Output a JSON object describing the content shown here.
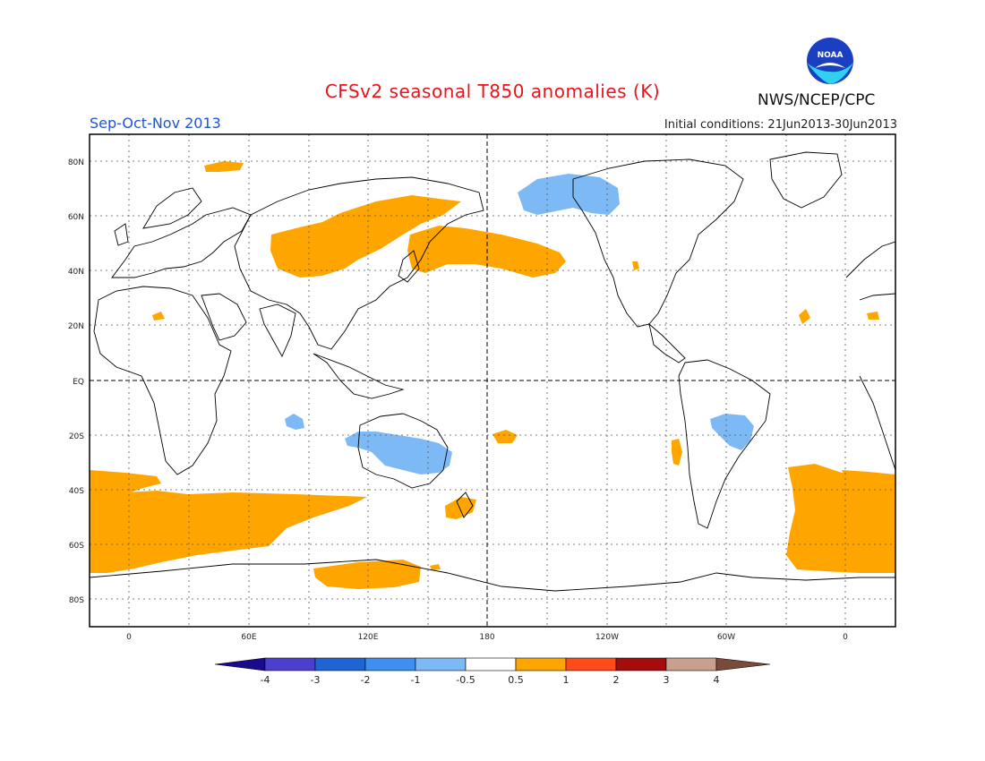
{
  "title": "CFSv2 seasonal T850 anomalies (K)",
  "season": "Sep-Oct-Nov 2013",
  "initial_conditions": "Initial conditions: 21Jun2013-30Jun2013",
  "agency": "NWS/NCEP/CPC",
  "logo_text": "NOAA",
  "lat_labels": [
    "80N",
    "60N",
    "40N",
    "20N",
    "EQ",
    "20S",
    "40S",
    "60S",
    "80S"
  ],
  "lon_labels": [
    "0",
    "60E",
    "120E",
    "180",
    "120W",
    "60W",
    "0"
  ],
  "colorbar": {
    "labels": [
      "-4",
      "-3",
      "-2",
      "-1",
      "-0.5",
      "0.5",
      "1",
      "2",
      "3",
      "4"
    ],
    "colors": [
      "#1a0a8c",
      "#4b3fd0",
      "#1f64d2",
      "#3f8ff0",
      "#7db9f4",
      "#ffffff",
      "#ffa500",
      "#ff4a1a",
      "#a50d0d",
      "#c8a08e",
      "#7a4a3a"
    ]
  },
  "colors": {
    "positive_anomaly": "#ffa500",
    "negative_anomaly": "#7db9f4",
    "coastline": "#000000",
    "title": "#e8141b",
    "season": "#2255cc"
  }
}
